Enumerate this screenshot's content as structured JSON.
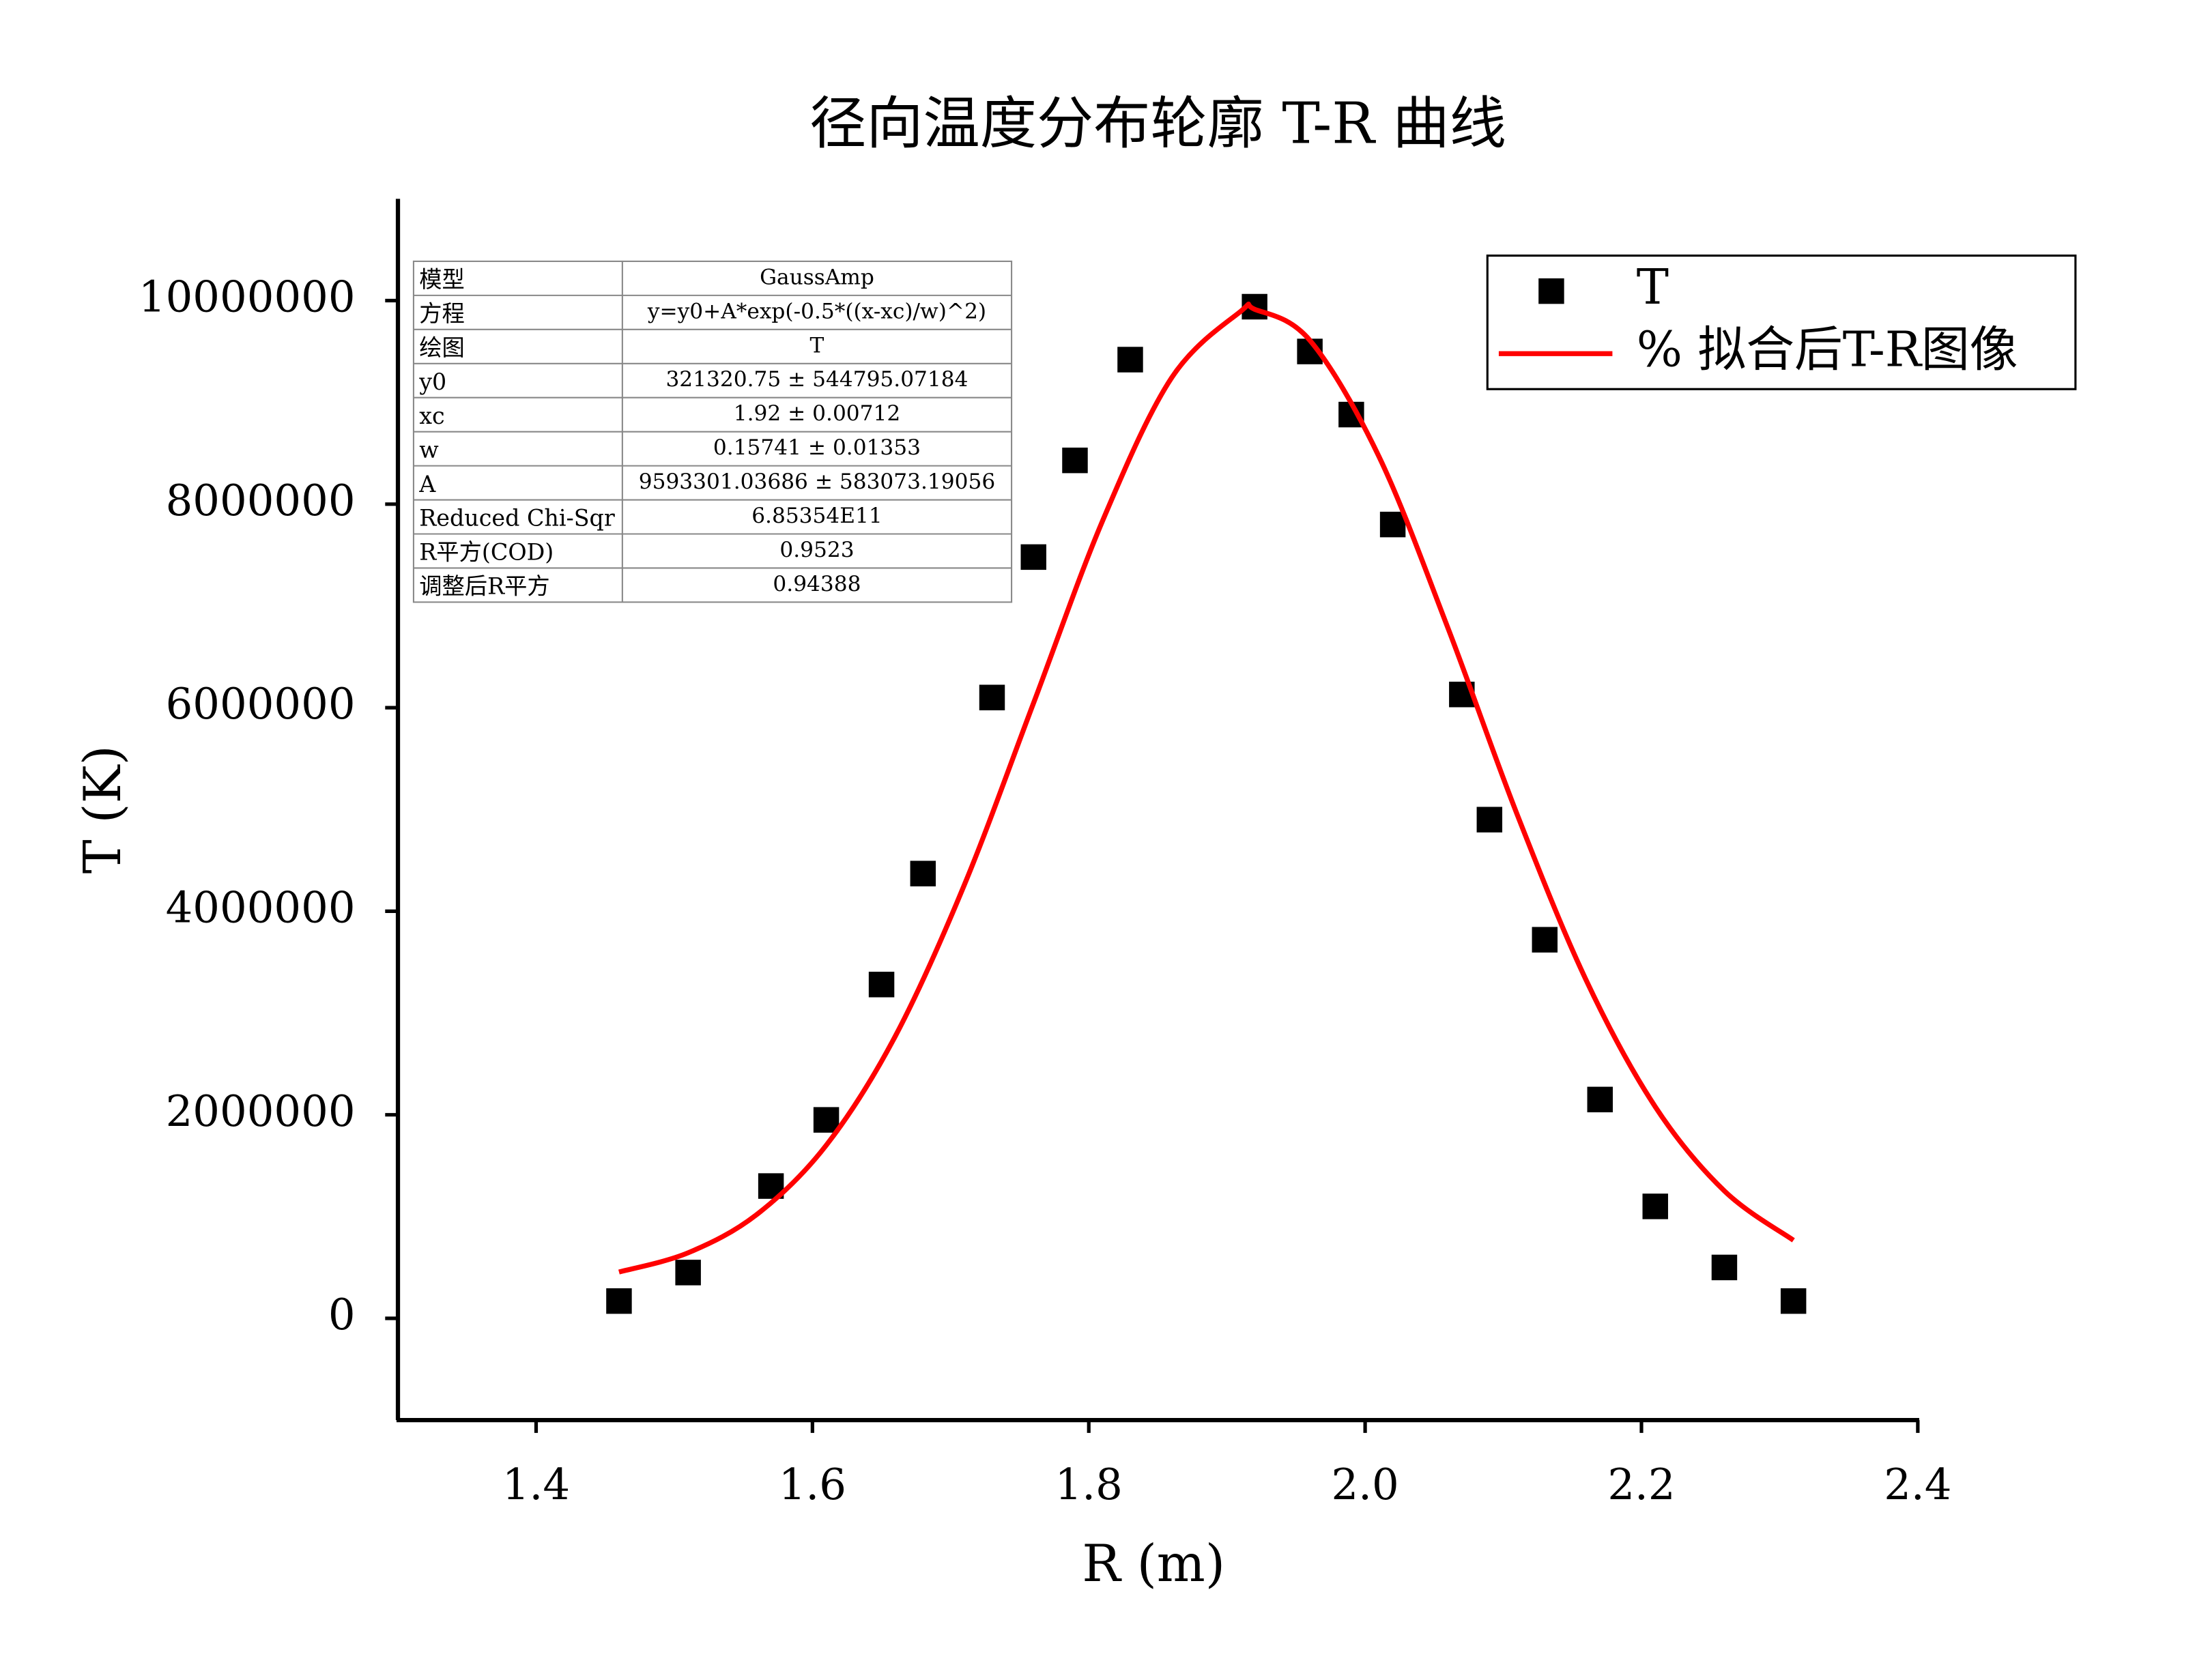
{
  "chart_data": {
    "type": "scatter",
    "title": "径向温度分布轮廓 T-R 曲线",
    "x_label": "R (m)",
    "y_label": "T (K)",
    "xlim": [
      1.3,
      2.4
    ],
    "ylim": [
      -1000000,
      11000000
    ],
    "xticks": [
      1.4,
      1.6,
      1.8,
      {
        "value": 2,
        "label": "2.0"
      },
      2.2,
      2.4
    ],
    "yticks": [
      0,
      2000000,
      4000000,
      6000000,
      8000000,
      10000000
    ],
    "legend": "upper-right",
    "series": [
      {
        "name": "T",
        "type": "scatter",
        "color": "#000000",
        "x": [
          1.46,
          1.51,
          1.57,
          1.61,
          1.65,
          1.68,
          1.73,
          1.76,
          1.79,
          1.83,
          1.92,
          1.96,
          1.99,
          2.02,
          2.07,
          2.09,
          2.13,
          2.17,
          2.21,
          2.26,
          2.31
        ],
        "values": [
          170000,
          450000,
          1300000,
          1950000,
          3280000,
          4370000,
          6100000,
          7480000,
          8430000,
          9420000,
          9940000,
          9500000,
          8880000,
          7800000,
          6130000,
          4900000,
          3720000,
          2150000,
          1100000,
          500000,
          170000
        ]
      },
      {
        "name": "% 拟合后T-R图像",
        "type": "line",
        "color": "#ff0000",
        "x": [
          1.46,
          1.51,
          1.56,
          1.61,
          1.66,
          1.71,
          1.76,
          1.81,
          1.86,
          1.91,
          1.92,
          1.96,
          2.01,
          2.06,
          2.11,
          2.16,
          2.21,
          2.26,
          2.31
        ],
        "values": [
          455400,
          644000,
          1023200,
          1700800,
          2773300,
          4261200,
          6044600,
          7836600,
          9242100,
          9895200,
          9914600,
          9609700,
          8468000,
          6780500,
          4952000,
          3322100,
          2078800,
          1252100,
          767000
        ]
      }
    ],
    "fit_table": {
      "rows": [
        [
          "模型",
          "GaussAmp"
        ],
        [
          "方程",
          "y=y0+A*exp(-0.5*((x-xc)/w)^2)"
        ],
        [
          "绘图",
          "T"
        ],
        [
          "y0",
          "321320.75 ± 544795.07184"
        ],
        [
          "xc",
          "1.92 ± 0.00712"
        ],
        [
          "w",
          "0.15741 ± 0.01353"
        ],
        [
          "A",
          "9593301.03686 ± 583073.19056"
        ],
        [
          "Reduced Chi-Sqr",
          "6.85354E11"
        ],
        [
          "R平方(COD)",
          "0.9523"
        ],
        [
          "调整后R平方",
          "0.94388"
        ]
      ]
    }
  }
}
